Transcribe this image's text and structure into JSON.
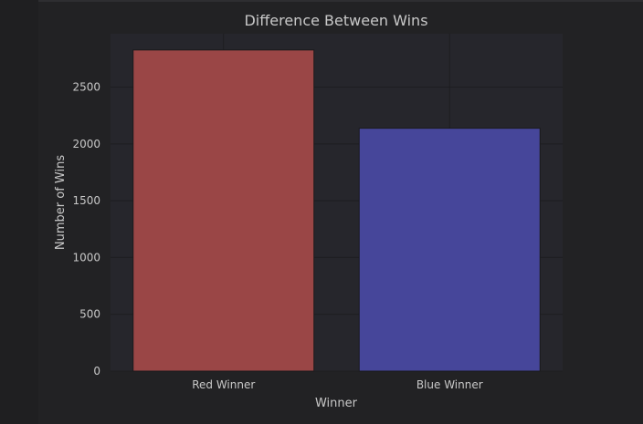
{
  "chart_data": {
    "type": "bar",
    "title": "Difference Between Wins",
    "xlabel": "Winner",
    "ylabel": "Number of Wins",
    "categories": [
      "Red Winner",
      "Blue Winner"
    ],
    "values": [
      2827,
      2138
    ],
    "ylim": [
      0,
      2970
    ],
    "yticks": [
      0,
      500,
      1000,
      1500,
      2000,
      2500
    ],
    "colors": [
      "#9a4646",
      "#46469a"
    ],
    "grid": true,
    "legend": "none"
  },
  "theme": {
    "background": "#1f1f21",
    "plot_background": "#26262c",
    "grid_color": "#1d1d20",
    "text_color": "#c8c8c8"
  }
}
